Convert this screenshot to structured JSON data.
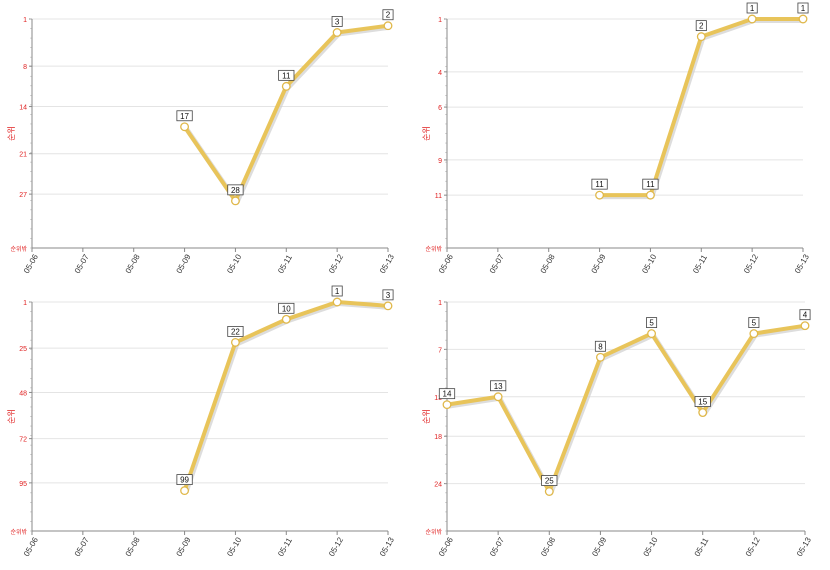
{
  "colors": {
    "line": "#e8c45a",
    "line_shadow": "#cfcfcf",
    "marker_fill": "#ffffff",
    "marker_stroke": "#e0b84a",
    "axis_label": "#e02020",
    "grid": "#e4e4e4",
    "axis": "#888888"
  },
  "chart_data": [
    {
      "type": "line",
      "ylabel": "순위",
      "yaxis_bottom_label": "순위밖",
      "y_reversed": true,
      "yticks": [
        1,
        8,
        14,
        21,
        27
      ],
      "categories": [
        "05-06",
        "05-07",
        "05-08",
        "05-09",
        "05-10",
        "05-11",
        "05-12",
        "05-13"
      ],
      "values": [
        null,
        null,
        null,
        17,
        28,
        11,
        3,
        2
      ],
      "labels": [
        "",
        "",
        "",
        "17",
        "28",
        "11",
        "3",
        "2"
      ],
      "ylim": [
        1,
        35
      ]
    },
    {
      "type": "line",
      "ylabel": "순위",
      "yaxis_bottom_label": "순위밖",
      "y_reversed": true,
      "yticks": [
        1,
        4,
        6,
        9,
        11
      ],
      "categories": [
        "05-06",
        "05-07",
        "05-08",
        "05-09",
        "05-10",
        "05-11",
        "05-12",
        "05-13"
      ],
      "values": [
        null,
        null,
        null,
        11,
        11,
        2,
        1,
        1
      ],
      "labels": [
        "",
        "",
        "",
        "11",
        "11",
        "2",
        "1",
        "1"
      ],
      "ylim": [
        1,
        14
      ]
    },
    {
      "type": "line",
      "ylabel": "순위",
      "yaxis_bottom_label": "순위밖",
      "y_reversed": true,
      "yticks": [
        1,
        25,
        48,
        72,
        95
      ],
      "categories": [
        "05-06",
        "05-07",
        "05-08",
        "05-09",
        "05-10",
        "05-11",
        "05-12",
        "05-13"
      ],
      "values": [
        null,
        null,
        null,
        99,
        22,
        10,
        1,
        3
      ],
      "labels": [
        "",
        "",
        "",
        "99",
        "22",
        "10",
        "1",
        "3"
      ],
      "ylim": [
        1,
        120
      ]
    },
    {
      "type": "line",
      "ylabel": "순위",
      "yaxis_bottom_label": "순위밖",
      "y_reversed": true,
      "yticks": [
        1,
        7,
        13,
        18,
        24
      ],
      "categories": [
        "05-06",
        "05-07",
        "05-08",
        "05-09",
        "05-10",
        "05-11",
        "05-12",
        "05-13"
      ],
      "values": [
        14,
        13,
        25,
        8,
        5,
        15,
        5,
        4
      ],
      "labels": [
        "14",
        "13",
        "25",
        "8",
        "5",
        "15",
        "5",
        "4"
      ],
      "ylim": [
        1,
        30
      ]
    }
  ]
}
